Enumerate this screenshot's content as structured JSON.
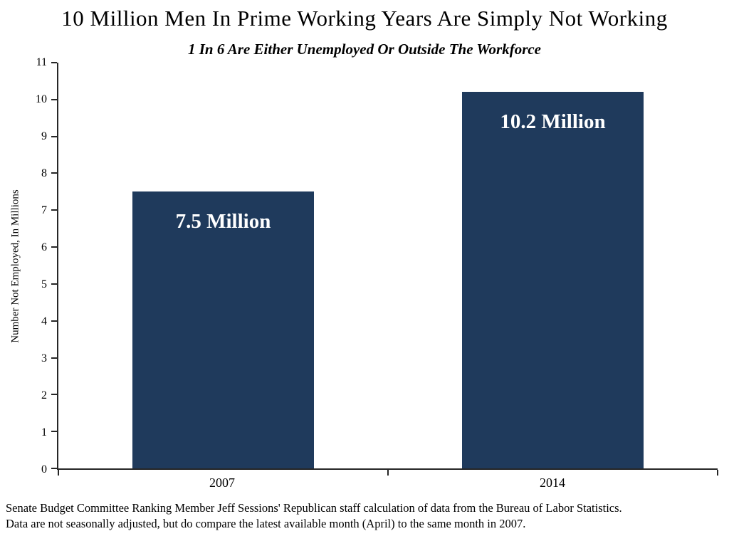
{
  "footer": {
    "line1": "Senate Budget Committee Ranking Member Jeff Sessions' Republican staff calculation of data from the Bureau of Labor Statistics.",
    "line2": "Data are not seasonally adjusted, but do compare the latest available month (April) to the same month in 2007."
  },
  "chart_data": {
    "type": "bar",
    "title": "10 Million Men In Prime Working Years Are Simply Not Working",
    "subtitle": "1 In 6 Are Either Unemployed Or Outside The Workforce",
    "categories": [
      "2007",
      "2014"
    ],
    "values": [
      7.5,
      10.2
    ],
    "bar_labels": [
      "7.5 Million",
      "10.2 Million"
    ],
    "xlabel": "",
    "ylabel": "Number Not Employed, In Millions",
    "ylim": [
      0,
      11
    ],
    "ytick_step": 1,
    "grid": false,
    "legend": "none",
    "bar_color": "#1f3a5c",
    "bar_label_color": "#ffffff",
    "axis_color": "#262626",
    "bar_width_fraction": 0.55
  }
}
